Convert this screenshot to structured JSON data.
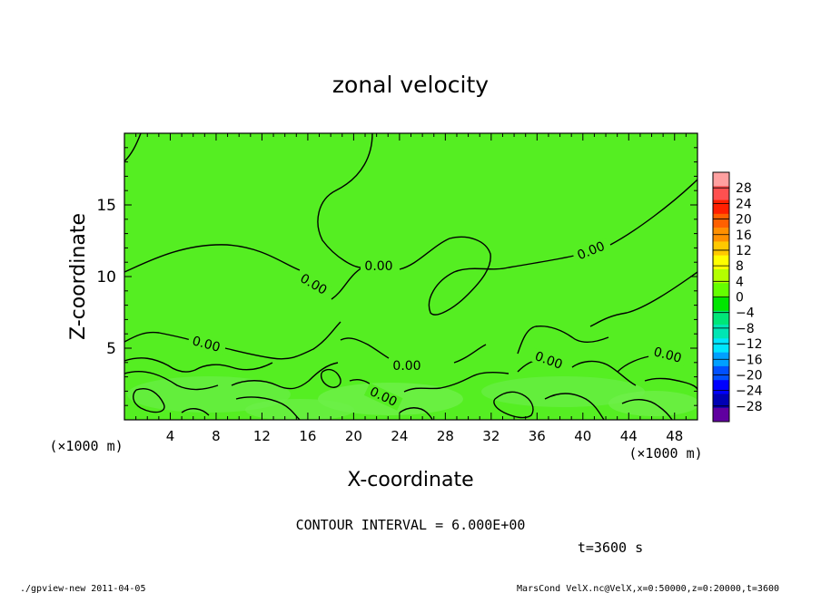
{
  "chart_data": {
    "type": "heatmap",
    "title": "zonal velocity",
    "xlabel": "X-coordinate",
    "ylabel": "Z-coordinate",
    "x_unit_label": "(×1000 m)",
    "y_unit_label": "(×1000 m)",
    "xlim": [
      0,
      50
    ],
    "ylim": [
      0,
      20
    ],
    "x_ticks": [
      4,
      8,
      12,
      16,
      20,
      24,
      28,
      32,
      36,
      40,
      44,
      48
    ],
    "y_ticks": [
      5,
      10,
      15
    ],
    "contour_labels": [
      {
        "text": "0.00",
        "x": 22.0,
        "y": 10.5
      },
      {
        "text": "0.00",
        "x": 16.5,
        "y": 9.4
      },
      {
        "text": "0.00",
        "x": 40.5,
        "y": 11.4
      },
      {
        "text": "0.00",
        "x": 7.0,
        "y": 5.2
      },
      {
        "text": "0.00",
        "x": 24.4,
        "y": 3.6
      },
      {
        "text": "0.00",
        "x": 37.0,
        "y": 4.0
      },
      {
        "text": "0.00",
        "x": 47.3,
        "y": 4.4
      },
      {
        "text": "0.00",
        "x": 22.5,
        "y": 1.4
      }
    ],
    "colorbar": {
      "labels": [
        "28",
        "24",
        "20",
        "16",
        "12",
        "8",
        "4",
        "0",
        "−4",
        "−8",
        "−12",
        "−16",
        "−20",
        "−24",
        "−28"
      ],
      "colors": [
        "#ffa0a0",
        "#ff5050",
        "#ff2000",
        "#ff6000",
        "#ff9000",
        "#ffc800",
        "#ffff00",
        "#b4ff00",
        "#64ff00",
        "#00e600",
        "#00e678",
        "#00e6b4",
        "#00e6ff",
        "#00a0ff",
        "#0050ff",
        "#0000ff",
        "#0000b4",
        "#6000a0"
      ]
    },
    "contour_interval": "CONTOUR INTERVAL = 6.000E+00",
    "time": "t=3600 s"
  },
  "footer": {
    "left": "./gpview-new   2011-04-05",
    "right": "MarsCond_VelX.nc@VelX,x=0:50000,z=0:20000,t=3600"
  }
}
